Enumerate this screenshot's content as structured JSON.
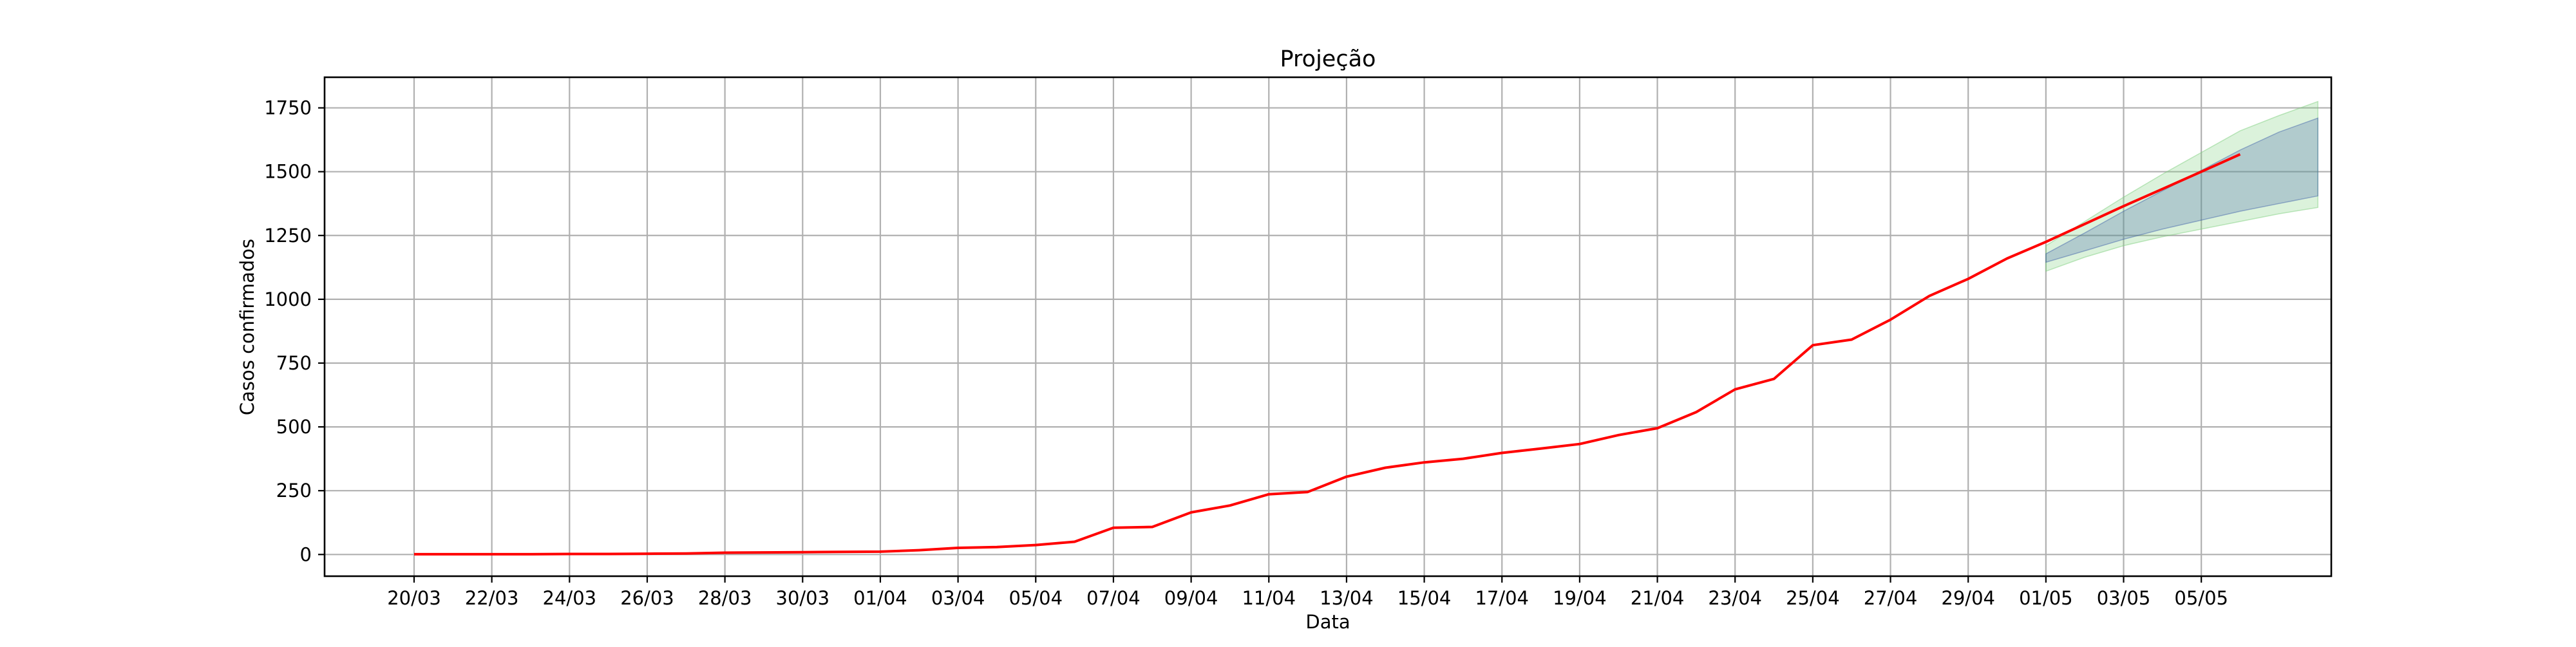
{
  "chart_data": {
    "type": "line",
    "title": "Projeção",
    "xlabel": "Data",
    "ylabel": "Casos confirmados",
    "grid": true,
    "x_start": "20/03",
    "x_tick_labels": [
      "20/03",
      "22/03",
      "24/03",
      "26/03",
      "28/03",
      "30/03",
      "01/04",
      "03/04",
      "05/04",
      "07/04",
      "09/04",
      "11/04",
      "13/04",
      "15/04",
      "17/04",
      "19/04",
      "21/04",
      "23/04",
      "25/04",
      "27/04",
      "29/04",
      "01/05",
      "03/05",
      "05/05"
    ],
    "y_ticks": [
      0,
      250,
      500,
      750,
      1000,
      1250,
      1500,
      1750
    ],
    "ylim": [
      -85,
      1870
    ],
    "colors": {
      "line": "#ff0000",
      "band_inner": "#3a5ba8",
      "band_outer": "#7fcf7f"
    },
    "series": [
      {
        "values": [
          1,
          1,
          1,
          1,
          2,
          2,
          3,
          4,
          7,
          8,
          9,
          10,
          11,
          17,
          26,
          29,
          37,
          50,
          105,
          108,
          165,
          192,
          236,
          245,
          305,
          340,
          361,
          375,
          398,
          415,
          433,
          468,
          495,
          558,
          647,
          688,
          820,
          842,
          920,
          1013,
          1080,
          1160,
          1225,
          1295,
          1365,
          1432,
          1500,
          1568
        ]
      }
    ],
    "projection_start": "01/05",
    "band_inner": {
      "lower": [
        1145,
        1190,
        1235,
        1275,
        1310,
        1345,
        1375,
        1405
      ],
      "upper": [
        1178,
        1260,
        1345,
        1425,
        1505,
        1585,
        1655,
        1710
      ]
    },
    "band_outer": {
      "lower": [
        1110,
        1165,
        1210,
        1245,
        1275,
        1305,
        1335,
        1360
      ],
      "upper": [
        1210,
        1305,
        1400,
        1490,
        1575,
        1660,
        1720,
        1775
      ]
    }
  }
}
